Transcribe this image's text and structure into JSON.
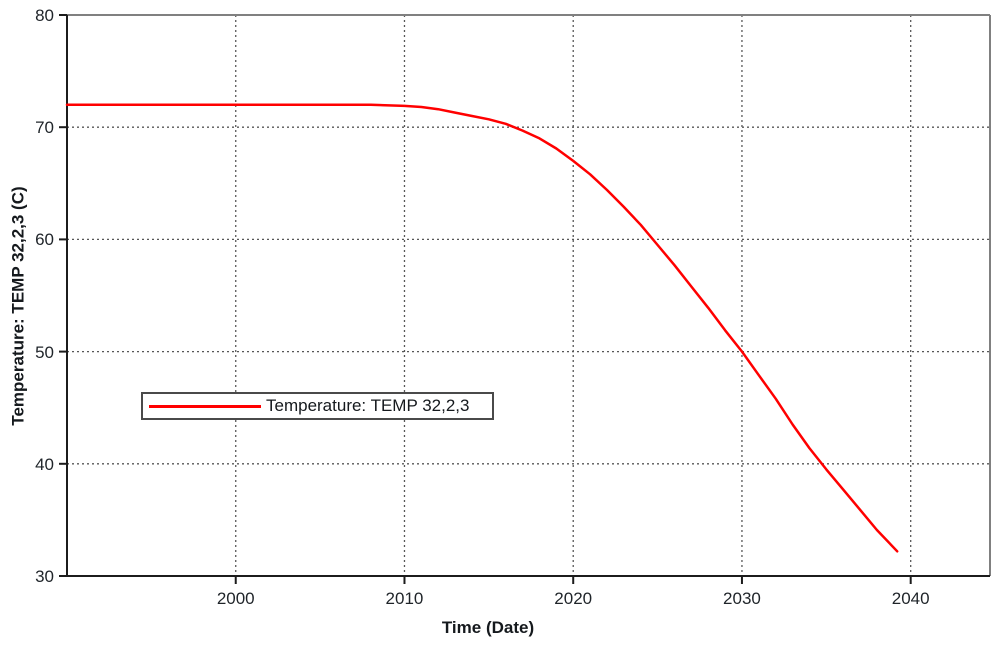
{
  "chart_data": {
    "type": "line",
    "title": "",
    "xlabel": "Time (Date)",
    "ylabel": "Temperature: TEMP 32,2,3 (C)",
    "xlim": [
      1990,
      2044.7
    ],
    "ylim": [
      30,
      80
    ],
    "xticks": [
      2000,
      2010,
      2020,
      2030,
      2040
    ],
    "yticks": [
      30,
      40,
      50,
      60,
      70,
      80
    ],
    "grid": "dotted",
    "legend_position": "inside-middle-left",
    "series": [
      {
        "name": "Temperature: TEMP 32,2,3",
        "color": "#ff0000",
        "points": [
          [
            1990,
            72.0
          ],
          [
            1992,
            72.0
          ],
          [
            1994,
            72.0
          ],
          [
            1996,
            72.0
          ],
          [
            1998,
            72.0
          ],
          [
            2000,
            72.0
          ],
          [
            2002,
            72.0
          ],
          [
            2004,
            72.0
          ],
          [
            2006,
            72.0
          ],
          [
            2008,
            72.0
          ],
          [
            2010,
            71.9
          ],
          [
            2011,
            71.8
          ],
          [
            2012,
            71.6
          ],
          [
            2013,
            71.3
          ],
          [
            2014,
            71.0
          ],
          [
            2015,
            70.7
          ],
          [
            2016,
            70.3
          ],
          [
            2017,
            69.7
          ],
          [
            2018,
            69.0
          ],
          [
            2019,
            68.1
          ],
          [
            2020,
            67.0
          ],
          [
            2021,
            65.8
          ],
          [
            2022,
            64.4
          ],
          [
            2023,
            62.9
          ],
          [
            2024,
            61.3
          ],
          [
            2025,
            59.5
          ],
          [
            2026,
            57.7
          ],
          [
            2027,
            55.8
          ],
          [
            2028,
            53.9
          ],
          [
            2029,
            51.9
          ],
          [
            2030,
            50.0
          ],
          [
            2031,
            47.9
          ],
          [
            2032,
            45.8
          ],
          [
            2033,
            43.5
          ],
          [
            2034,
            41.4
          ],
          [
            2035,
            39.5
          ],
          [
            2036,
            37.7
          ],
          [
            2037,
            35.9
          ],
          [
            2038,
            34.1
          ],
          [
            2039.2,
            32.2
          ]
        ]
      }
    ],
    "colors": {
      "series": "#ff0000",
      "grid": "#575757",
      "axis_dark": "#1c1c1c",
      "frame_light": "#808080",
      "text": "#1f2429",
      "background": "#ffffff"
    }
  }
}
